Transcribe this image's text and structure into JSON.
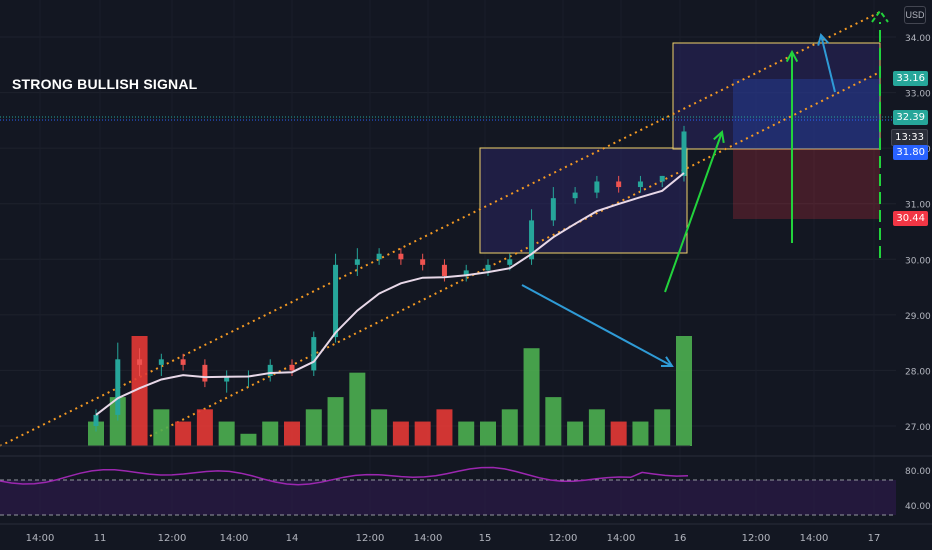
{
  "title": "STRONG BULLISH SIGNAL",
  "unit": "USD",
  "colors": {
    "bg": "#131722",
    "up": "#26a69a",
    "down": "#ef5350",
    "vol_up": "#4caf50",
    "vol_down": "#e53935",
    "vwap": "#e8d8e8",
    "channel": "#f59a23",
    "box_stroke": "#f0d36b",
    "box_fill": "#2a2560",
    "arrow_green": "#22d33c",
    "arrow_blue": "#2f9bd6",
    "rsi_line": "#9c27b0",
    "rsi_band": "#2b1a47"
  },
  "price_axis": {
    "ticks": [
      "34.00",
      "33.00",
      "32.00",
      "31.00",
      "30.00",
      "29.00",
      "28.00",
      "27.00"
    ],
    "tags": [
      {
        "label": "33.16",
        "color": "#26a69a"
      },
      {
        "label": "32.39",
        "color": "#26a69a"
      },
      {
        "label": "13:33",
        "color": "#2a2e39"
      },
      {
        "label": "31.80",
        "color": "#2962ff"
      },
      {
        "label": "30.44",
        "color": "#f23645"
      }
    ]
  },
  "rsi_axis": {
    "ticks": [
      "80.00",
      "40.00"
    ]
  },
  "time_axis": [
    "14:00",
    "11",
    "12:00",
    "14:00",
    "14",
    "12:00",
    "14:00",
    "15",
    "12:00",
    "14:00",
    "16",
    "12:00",
    "14:00",
    "17"
  ],
  "chart_data": {
    "type": "candlestick",
    "title": "STRONG BULLISH SIGNAL",
    "y_range": [
      26.0,
      34.5
    ],
    "y_unit": "USD",
    "candles": [
      {
        "o": 27.0,
        "h": 27.3,
        "l": 26.9,
        "c": 27.2
      },
      {
        "o": 27.2,
        "h": 28.5,
        "l": 27.1,
        "c": 28.2
      },
      {
        "o": 28.2,
        "h": 28.4,
        "l": 27.9,
        "c": 28.1
      },
      {
        "o": 28.1,
        "h": 28.3,
        "l": 27.9,
        "c": 28.2
      },
      {
        "o": 28.2,
        "h": 28.3,
        "l": 28.0,
        "c": 28.1
      },
      {
        "o": 28.1,
        "h": 28.2,
        "l": 27.7,
        "c": 27.8
      },
      {
        "o": 27.8,
        "h": 28.0,
        "l": 27.6,
        "c": 27.9
      },
      {
        "o": 27.9,
        "h": 28.0,
        "l": 27.7,
        "c": 27.9
      },
      {
        "o": 27.9,
        "h": 28.2,
        "l": 27.8,
        "c": 28.1
      },
      {
        "o": 28.1,
        "h": 28.2,
        "l": 27.9,
        "c": 28.0
      },
      {
        "o": 28.0,
        "h": 28.7,
        "l": 27.9,
        "c": 28.6
      },
      {
        "o": 28.6,
        "h": 30.1,
        "l": 28.5,
        "c": 29.9
      },
      {
        "o": 29.9,
        "h": 30.2,
        "l": 29.7,
        "c": 30.0
      },
      {
        "o": 30.0,
        "h": 30.2,
        "l": 29.9,
        "c": 30.1
      },
      {
        "o": 30.1,
        "h": 30.2,
        "l": 29.9,
        "c": 30.0
      },
      {
        "o": 30.0,
        "h": 30.1,
        "l": 29.8,
        "c": 29.9
      },
      {
        "o": 29.9,
        "h": 30.0,
        "l": 29.6,
        "c": 29.7
      },
      {
        "o": 29.7,
        "h": 29.9,
        "l": 29.6,
        "c": 29.8
      },
      {
        "o": 29.8,
        "h": 30.0,
        "l": 29.7,
        "c": 29.9
      },
      {
        "o": 29.9,
        "h": 30.1,
        "l": 29.8,
        "c": 30.0
      },
      {
        "o": 30.0,
        "h": 30.9,
        "l": 29.9,
        "c": 30.7
      },
      {
        "o": 30.7,
        "h": 31.3,
        "l": 30.6,
        "c": 31.1
      },
      {
        "o": 31.1,
        "h": 31.3,
        "l": 31.0,
        "c": 31.2
      },
      {
        "o": 31.2,
        "h": 31.5,
        "l": 31.1,
        "c": 31.4
      },
      {
        "o": 31.4,
        "h": 31.5,
        "l": 31.2,
        "c": 31.3
      },
      {
        "o": 31.3,
        "h": 31.5,
        "l": 31.2,
        "c": 31.4
      },
      {
        "o": 31.4,
        "h": 31.5,
        "l": 31.3,
        "c": 31.5
      },
      {
        "o": 31.5,
        "h": 32.4,
        "l": 31.4,
        "c": 32.3
      }
    ],
    "volume_relative": [
      2,
      4,
      9,
      3,
      2,
      3,
      2,
      1,
      2,
      2,
      3,
      4,
      6,
      3,
      2,
      2,
      3,
      2,
      2,
      3,
      8,
      4,
      2,
      3,
      2,
      2,
      3,
      9
    ],
    "rsi_levels": [
      80,
      40
    ],
    "annotations": {
      "price_levels": [
        33.16,
        32.39,
        31.8,
        30.44
      ],
      "last_time": "13:33"
    }
  }
}
